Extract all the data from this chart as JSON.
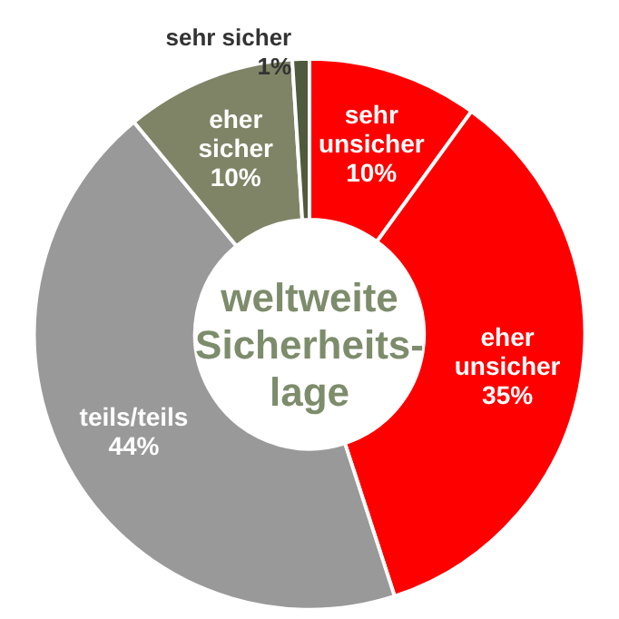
{
  "chart_data": {
    "type": "donut",
    "title": "weltweite\nSicherheits-\nlage",
    "categories": [
      "sehr unsicher",
      "eher unsicher",
      "teils/teils",
      "eher sicher",
      "sehr sicher"
    ],
    "values": [
      10,
      35,
      44,
      10,
      1
    ],
    "value_labels": [
      "10%",
      "35%",
      "44%",
      "10%",
      "1%"
    ],
    "colors": [
      "#ff0000",
      "#ff0000",
      "#999999",
      "#7f8466",
      "#505a3c"
    ],
    "legend": false
  }
}
